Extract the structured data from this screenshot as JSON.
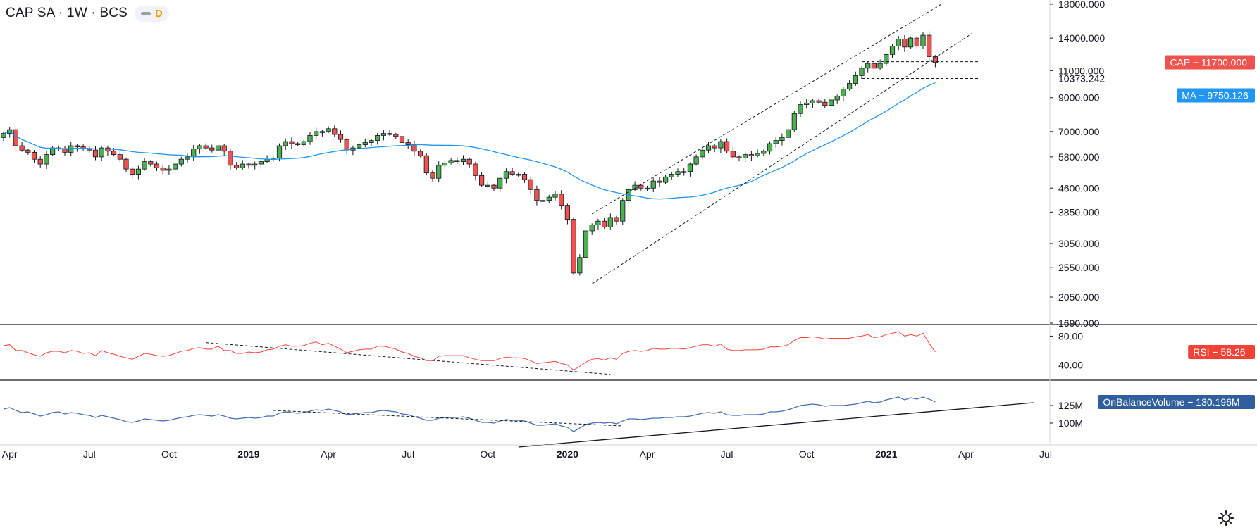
{
  "header": {
    "title": "CAP SA · 1W · BCS",
    "badge_letter": "D"
  },
  "colors": {
    "up": "#4caf50",
    "down": "#ef5350",
    "ma": "#2196f3",
    "rsi": "#f44336",
    "obv": "#3f6fb5",
    "obv_tag": "#2f5f9e"
  },
  "chart_data": [
    {
      "type": "candlestick",
      "name": "price",
      "y_scale": "log",
      "ylim": [
        1690,
        18000
      ],
      "y_ticks": [
        "18000.000",
        "14000.000",
        "11000.000",
        "9000.000",
        "7000.000",
        "5800.000",
        "4600.000",
        "3850.000",
        "3050.000",
        "2550.000",
        "2050.000",
        "1690.000"
      ],
      "y_tick_values": [
        18000,
        14000,
        11000,
        9000,
        7000,
        5800,
        4600,
        3850,
        3050,
        2550,
        2050,
        1690
      ],
      "x_labels": [
        {
          "label": "Apr",
          "i": 1
        },
        {
          "label": "Jul",
          "i": 14
        },
        {
          "label": "Oct",
          "i": 27
        },
        {
          "label": "2019",
          "i": 40,
          "bold": true
        },
        {
          "label": "Apr",
          "i": 53
        },
        {
          "label": "Jul",
          "i": 66
        },
        {
          "label": "Oct",
          "i": 79
        },
        {
          "label": "2020",
          "i": 92,
          "bold": true
        },
        {
          "label": "Apr",
          "i": 105
        },
        {
          "label": "Jul",
          "i": 118
        },
        {
          "label": "Oct",
          "i": 131
        },
        {
          "label": "2021",
          "i": 144,
          "bold": true
        },
        {
          "label": "Apr",
          "i": 157
        },
        {
          "label": "Jul",
          "i": 170
        }
      ],
      "closes": [
        6900,
        7100,
        6300,
        6100,
        6000,
        5700,
        5500,
        5900,
        6200,
        6150,
        6000,
        6300,
        6250,
        6150,
        6100,
        5800,
        6200,
        6050,
        5900,
        5700,
        5300,
        5100,
        5300,
        5600,
        5500,
        5350,
        5250,
        5300,
        5500,
        5700,
        5800,
        6150,
        6300,
        6200,
        6100,
        6300,
        6050,
        5450,
        5350,
        5500,
        5450,
        5500,
        5600,
        5700,
        5750,
        6300,
        6500,
        6400,
        6350,
        6500,
        6800,
        7000,
        7000,
        7150,
        6850,
        6600,
        6100,
        6200,
        6350,
        6450,
        6550,
        6800,
        6900,
        6850,
        6750,
        6450,
        6350,
        6050,
        5850,
        5150,
        4950,
        5450,
        5550,
        5650,
        5600,
        5700,
        5500,
        5050,
        4700,
        4700,
        4600,
        4950,
        5200,
        5100,
        5100,
        4900,
        4550,
        4200,
        4200,
        4300,
        4400,
        4050,
        3650,
        2450,
        2750,
        3350,
        3500,
        3600,
        3450,
        3700,
        3600,
        4200,
        4550,
        4700,
        4600,
        4600,
        4850,
        4800,
        5000,
        5100,
        5200,
        5200,
        5500,
        5800,
        6100,
        6300,
        6200,
        6500,
        6050,
        5800,
        5750,
        5900,
        5850,
        5950,
        6050,
        6400,
        6550,
        6700,
        7100,
        8000,
        8550,
        8650,
        8800,
        8700,
        8500,
        8850,
        9100,
        9600,
        10000,
        10600,
        11200,
        11600,
        11200,
        11600,
        12400,
        13200,
        13900,
        13100,
        14000,
        13200,
        14300,
        12200,
        11700
      ],
      "ma_value_label": "9750.126",
      "last_value_label": "11700.000",
      "level_label": "10373.242",
      "level_value": 10373.242,
      "resistance_level": 11750,
      "channel_upper": [
        {
          "i": 96,
          "v": 3800
        },
        {
          "i": 153,
          "v": 18000
        }
      ],
      "channel_lower": [
        {
          "i": 96,
          "v": 2260
        },
        {
          "i": 158,
          "v": 14500
        }
      ]
    },
    {
      "type": "line",
      "name": "RSI",
      "ylim": [
        20,
        95
      ],
      "y_ticks": [
        "80.00",
        "40.00"
      ],
      "y_tick_values": [
        80,
        40
      ],
      "last_value_label": "58.26",
      "trendline": [
        {
          "i": 33,
          "v": 71
        },
        {
          "i": 99,
          "v": 27
        }
      ],
      "values": [
        67,
        68,
        60,
        60,
        57,
        54,
        52,
        57,
        59,
        59,
        57,
        60,
        59,
        56,
        57,
        53,
        60,
        57,
        55,
        52,
        50,
        48,
        52,
        56,
        55,
        53,
        52,
        53,
        56,
        59,
        60,
        63,
        64,
        62,
        62,
        66,
        60,
        60,
        56,
        56,
        58,
        57,
        58,
        61,
        62,
        66,
        68,
        66,
        66,
        67,
        70,
        72,
        68,
        70,
        66,
        62,
        57,
        59,
        61,
        62,
        62,
        66,
        66,
        64,
        62,
        58,
        56,
        52,
        50,
        46,
        46,
        52,
        53,
        53,
        53,
        53,
        50,
        48,
        46,
        46,
        46,
        49,
        51,
        50,
        50,
        49,
        46,
        42,
        43,
        44,
        45,
        42,
        40,
        33,
        38,
        44,
        48,
        49,
        47,
        50,
        48,
        56,
        59,
        60,
        59,
        60,
        63,
        62,
        62,
        63,
        63,
        62,
        64,
        66,
        68,
        68,
        66,
        69,
        62,
        60,
        60,
        61,
        61,
        61,
        62,
        65,
        65,
        66,
        68,
        74,
        78,
        78,
        79,
        78,
        76,
        77,
        77,
        77,
        77,
        79,
        80,
        82,
        78,
        79,
        82,
        84,
        86,
        80,
        82,
        80,
        84,
        70,
        58
      ]
    },
    {
      "type": "line",
      "name": "OnBalanceVolume",
      "ylim": [
        70,
        160
      ],
      "y_ticks": [
        "125M",
        "100M"
      ],
      "y_tick_values": [
        125,
        100
      ],
      "last_value_label": "130.196M",
      "trendline_support": [
        {
          "i": 84,
          "v": 66
        },
        {
          "i": 168,
          "v": 129
        }
      ],
      "trendline_resistance": [
        {
          "i": 44,
          "v": 118
        },
        {
          "i": 101,
          "v": 96
        }
      ],
      "values": [
        120,
        122,
        118,
        115,
        116,
        113,
        110,
        112,
        115,
        116,
        113,
        115,
        114,
        112,
        111,
        108,
        111,
        109,
        107,
        105,
        102,
        101,
        103,
        106,
        105,
        104,
        103,
        104,
        106,
        108,
        109,
        111,
        112,
        111,
        110,
        112,
        110,
        107,
        106,
        107,
        108,
        107,
        108,
        110,
        110,
        114,
        116,
        115,
        114,
        115,
        117,
        119,
        118,
        120,
        118,
        116,
        112,
        113,
        114,
        115,
        115,
        117,
        118,
        117,
        116,
        113,
        112,
        109,
        107,
        104,
        104,
        107,
        108,
        108,
        108,
        109,
        107,
        104,
        101,
        101,
        100,
        103,
        105,
        104,
        104,
        103,
        100,
        97,
        97,
        98,
        99,
        96,
        94,
        88,
        93,
        98,
        100,
        101,
        100,
        101,
        99,
        103,
        106,
        106,
        105,
        106,
        107,
        107,
        108,
        108,
        109,
        109,
        110,
        112,
        114,
        115,
        114,
        116,
        112,
        111,
        111,
        112,
        112,
        112,
        113,
        116,
        116,
        117,
        119,
        122,
        125,
        126,
        127,
        126,
        124,
        125,
        125,
        125,
        126,
        127,
        129,
        131,
        129,
        130,
        133,
        135,
        137,
        133,
        136,
        134,
        137,
        134,
        130
      ]
    }
  ]
}
